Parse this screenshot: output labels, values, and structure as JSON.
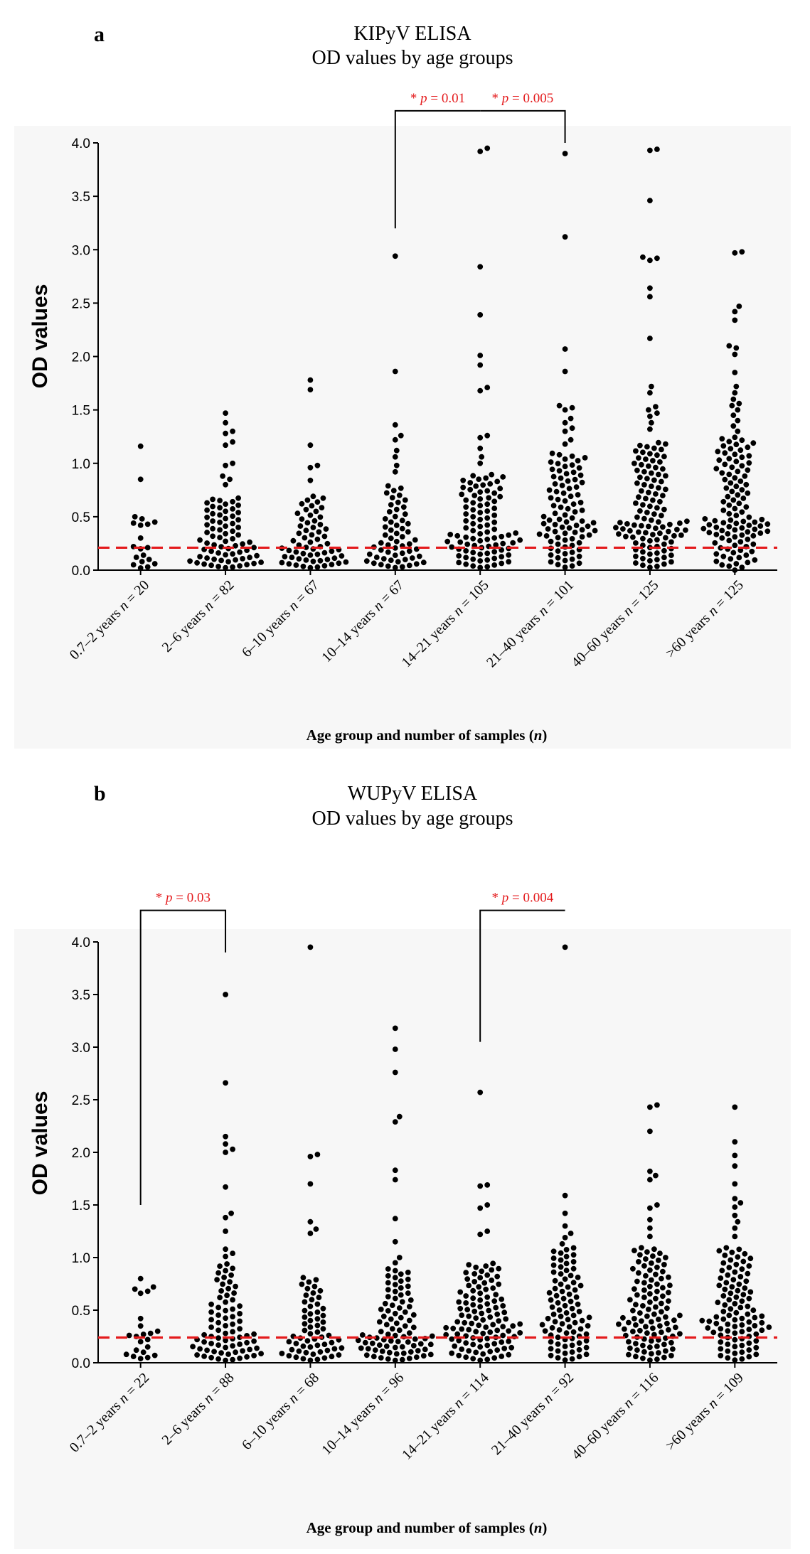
{
  "chart_data": [
    {
      "panel": "a",
      "type": "scatter",
      "subtype": "dot-strip",
      "title": "KIPyV ELISA",
      "subtitle": "OD values by age groups",
      "ylabel": "OD values",
      "xlabel": "Age group and number of samples (n)",
      "ylim": [
        0,
        4.0
      ],
      "yticks": [
        "0.0",
        "0.5",
        "1.0",
        "1.5",
        "2.0",
        "2.5",
        "3.0",
        "3.5",
        "4.0"
      ],
      "cutoff": 0.21,
      "categories": [
        {
          "label": "0.7–2 years n = 20",
          "n": 20,
          "outliers": [
            1.16,
            0.85,
            0.5,
            0.48,
            0.45,
            0.44,
            0.43,
            0.42,
            0.3,
            0.22,
            0.21,
            0.2,
            0.14,
            0.12,
            0.1,
            0.08,
            0.06,
            0.05,
            0.03,
            0.02
          ]
        },
        {
          "label": "2–6 years n = 82",
          "n": 82,
          "median": 0.27,
          "iqr": [
            0.12,
            0.48
          ],
          "upper": 0.68,
          "outliers": [
            1.47,
            1.38,
            1.3,
            1.28,
            1.2,
            1.17,
            1.0,
            0.98,
            0.88,
            0.85,
            0.8
          ]
        },
        {
          "label": "6–10 years n = 67",
          "n": 67,
          "median": 0.22,
          "iqr": [
            0.11,
            0.43
          ],
          "upper": 0.7,
          "outliers": [
            1.78,
            1.69,
            1.17,
            0.98,
            0.96,
            0.84
          ]
        },
        {
          "label": "10–14 years n = 67",
          "n": 67,
          "median": 0.26,
          "iqr": [
            0.12,
            0.48
          ],
          "upper": 0.8,
          "outliers": [
            2.94,
            1.86,
            1.36,
            1.26,
            1.22,
            1.12,
            1.06,
            0.98,
            0.92
          ]
        },
        {
          "label": "14–21 years n = 105",
          "n": 105,
          "median": 0.35,
          "iqr": [
            0.2,
            0.65
          ],
          "upper": 0.9,
          "outliers": [
            3.95,
            3.92,
            2.84,
            2.39,
            2.01,
            1.92,
            1.71,
            1.68,
            1.26,
            1.24,
            1.14,
            1.06,
            1.0
          ]
        },
        {
          "label": "21–40 years n = 101",
          "n": 101,
          "median": 0.48,
          "iqr": [
            0.3,
            0.8
          ],
          "upper": 1.1,
          "outliers": [
            3.9,
            3.12,
            2.07,
            1.86,
            1.54,
            1.52,
            1.5,
            1.42,
            1.38,
            1.33,
            1.3,
            1.22,
            1.18
          ]
        },
        {
          "label": "40–60 years n = 125",
          "n": 125,
          "median": 0.46,
          "iqr": [
            0.3,
            0.85
          ],
          "upper": 1.2,
          "outliers": [
            3.94,
            3.93,
            3.46,
            2.93,
            2.92,
            2.9,
            2.64,
            2.56,
            2.17,
            1.72,
            1.66,
            1.53,
            1.5,
            1.47,
            1.44,
            1.38,
            1.32
          ]
        },
        {
          "label": ">60 years n = 125",
          "n": 125,
          "median": 0.48,
          "iqr": [
            0.32,
            0.9
          ],
          "upper": 1.25,
          "outliers": [
            2.98,
            2.97,
            2.47,
            2.42,
            2.34,
            2.1,
            2.08,
            2.02,
            1.85,
            1.72,
            1.66,
            1.6,
            1.56,
            1.54,
            1.5,
            1.45,
            1.4,
            1.35,
            1.3,
            0.0
          ]
        }
      ],
      "significance": [
        {
          "from": 3,
          "to": 4,
          "label": "* p = 0.01",
          "left_y": 3.2,
          "right_y": 4.3
        },
        {
          "from": 4,
          "to": 5,
          "label": "* p = 0.005",
          "left_y": 4.3,
          "right_y": 4.0
        }
      ]
    },
    {
      "panel": "b",
      "type": "scatter",
      "subtype": "dot-strip",
      "title": "WUPyV ELISA",
      "subtitle": "OD values by age groups",
      "ylabel": "OD values",
      "xlabel": "Age group and number of samples (n)",
      "ylim": [
        0,
        4.0
      ],
      "yticks": [
        "0.0",
        "0.5",
        "1.0",
        "1.5",
        "2.0",
        "2.5",
        "3.0",
        "3.5",
        "4.0"
      ],
      "cutoff": 0.24,
      "categories": [
        {
          "label": "0.7–2 years n = 22",
          "n": 22,
          "outliers": [
            0.8,
            0.72,
            0.7,
            0.68,
            0.66,
            0.42,
            0.35,
            0.3,
            0.28,
            0.27,
            0.26,
            0.25,
            0.22,
            0.2,
            0.15,
            0.12,
            0.1,
            0.08,
            0.07,
            0.06,
            0.05,
            0.04
          ]
        },
        {
          "label": "2–6 years n = 88",
          "n": 88,
          "median": 0.28,
          "iqr": [
            0.14,
            0.55
          ],
          "upper": 0.95,
          "outliers": [
            3.5,
            2.66,
            2.15,
            2.08,
            2.03,
            2.0,
            1.67,
            1.42,
            1.38,
            1.25,
            1.08,
            1.04,
            1.01
          ]
        },
        {
          "label": "6–10 years n = 68",
          "n": 68,
          "median": 0.26,
          "iqr": [
            0.13,
            0.5
          ],
          "upper": 0.82,
          "outliers": [
            3.95,
            1.98,
            1.96,
            1.7,
            1.34,
            1.27,
            1.23
          ]
        },
        {
          "label": "10–14 years n = 96",
          "n": 96,
          "median": 0.27,
          "iqr": [
            0.15,
            0.55
          ],
          "upper": 0.9,
          "outliers": [
            3.18,
            2.98,
            2.76,
            2.34,
            2.29,
            1.83,
            1.74,
            1.37,
            1.15,
            1.0,
            0.95
          ]
        },
        {
          "label": "14–21 years n = 114",
          "n": 114,
          "median": 0.38,
          "iqr": [
            0.22,
            0.62
          ],
          "upper": 0.95,
          "outliers": [
            2.57,
            1.69,
            1.68,
            1.5,
            1.47,
            1.25,
            1.22
          ]
        },
        {
          "label": "21–40 years n = 92",
          "n": 92,
          "median": 0.46,
          "iqr": [
            0.25,
            0.75
          ],
          "upper": 1.1,
          "outliers": [
            3.95,
            1.59,
            1.42,
            1.3,
            1.23,
            1.19,
            1.13
          ]
        },
        {
          "label": "40–60 years n = 116",
          "n": 116,
          "median": 0.45,
          "iqr": [
            0.25,
            0.75
          ],
          "upper": 1.1,
          "outliers": [
            2.45,
            2.43,
            2.2,
            1.82,
            1.78,
            1.74,
            1.5,
            1.47,
            1.36,
            1.28,
            1.2
          ]
        },
        {
          "label": ">60 years n = 109",
          "n": 109,
          "median": 0.45,
          "iqr": [
            0.28,
            0.75
          ],
          "upper": 1.1,
          "outliers": [
            2.43,
            2.1,
            1.97,
            1.87,
            1.7,
            1.56,
            1.52,
            1.48,
            1.4,
            1.34,
            1.28,
            1.2
          ]
        }
      ],
      "significance": [
        {
          "from": 0,
          "to": 1,
          "label": "* p = 0.03",
          "left_y": 1.5,
          "right_y": 3.9
        },
        {
          "from": 4,
          "to": 5,
          "label": "* p = 0.004",
          "left_y": 3.05,
          "right_y": 4.3
        }
      ]
    }
  ],
  "colors": {
    "dots": "#000000",
    "cutoff": "#e41a1c",
    "significance": "#e41a1c",
    "plot_bg": "#f7f7f7"
  }
}
